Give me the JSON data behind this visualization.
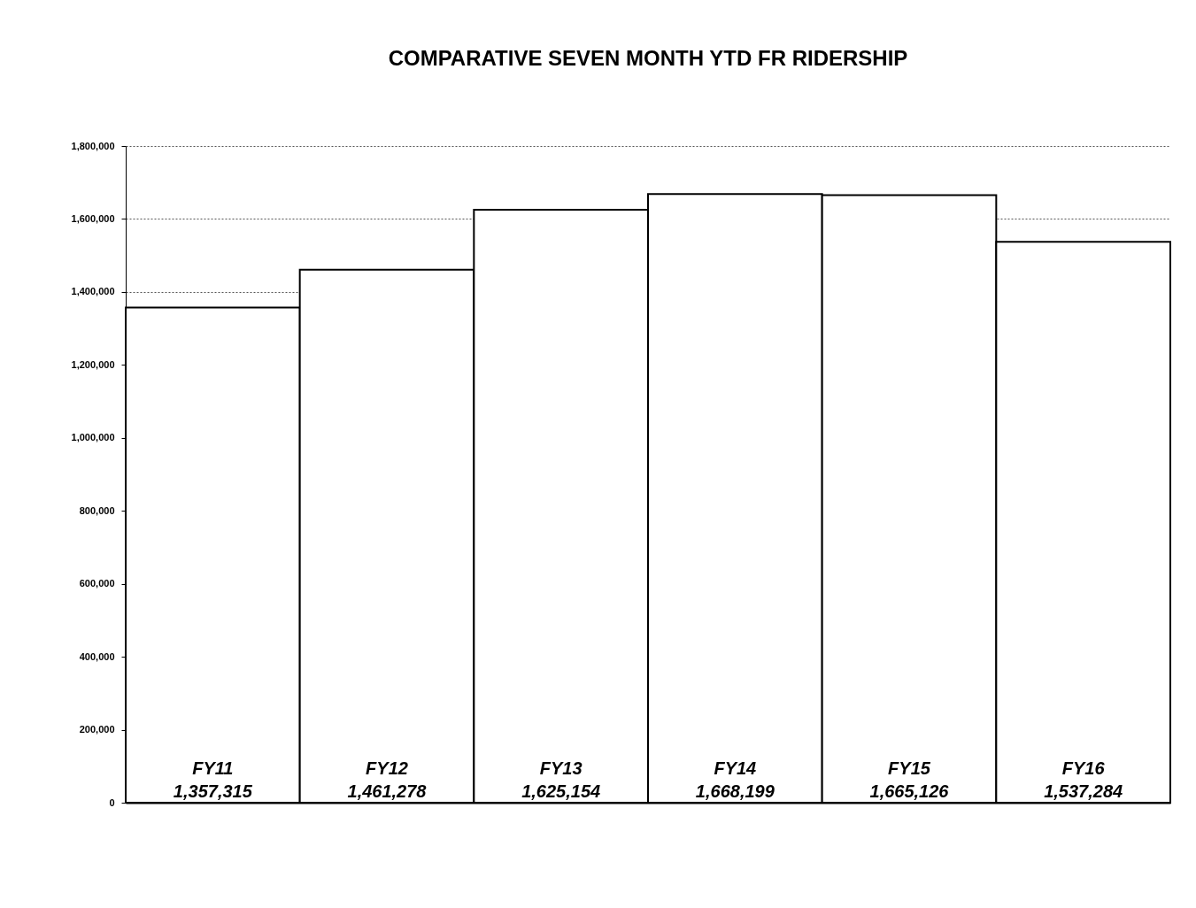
{
  "chart_data": {
    "type": "bar",
    "title": "COMPARATIVE SEVEN MONTH YTD FR RIDERSHIP",
    "categories": [
      "FY11",
      "FY12",
      "FY13",
      "FY14",
      "FY15",
      "FY16"
    ],
    "values": [
      1357315,
      1461278,
      1625154,
      1668199,
      1665126,
      1537284
    ],
    "value_labels": [
      "1,357,315",
      "1,461,278",
      "1,625,154",
      "1,668,199",
      "1,665,126",
      "1,537,284"
    ],
    "color": "#ffffff",
    "ylim": [
      0,
      1800000
    ],
    "yticks": [
      0,
      {
        "value": 200000,
        "label": "200,000"
      },
      {
        "value": 400000,
        "label": "400,000"
      },
      {
        "value": 600000,
        "label": "600,000"
      },
      {
        "value": 800000,
        "label": "800,000"
      },
      {
        "value": 1000000,
        "label": "1,000,000"
      },
      {
        "value": 1200000,
        "label": "1,200,000"
      },
      {
        "value": 1400000,
        "label": "1,400,000"
      },
      {
        "value": 1600000,
        "label": "1,600,000"
      },
      {
        "value": 1800000,
        "label": "1,800,000"
      }
    ],
    "grid": "y"
  }
}
